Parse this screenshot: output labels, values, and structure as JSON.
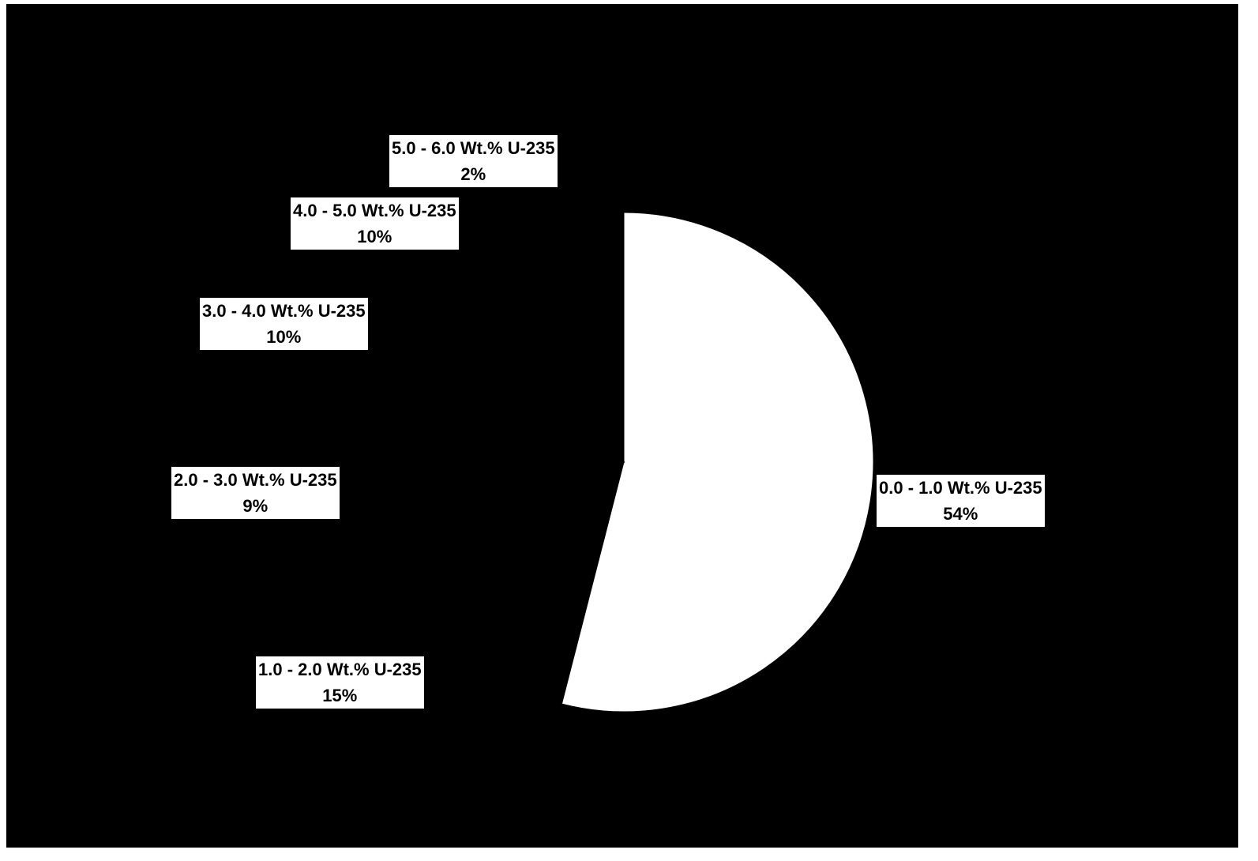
{
  "chart_data": {
    "type": "pie",
    "title": "",
    "slices": [
      {
        "label": "0.0 - 1.0 Wt.% U-235",
        "value": 54,
        "value_label": "54%",
        "color": "#ffffff"
      },
      {
        "label": "1.0 - 2.0 Wt.% U-235",
        "value": 15,
        "value_label": "15%",
        "color": "#000000"
      },
      {
        "label": "2.0 - 3.0 Wt.% U-235",
        "value": 9,
        "value_label": "9%",
        "color": "#000000"
      },
      {
        "label": "3.0 - 4.0 Wt.% U-235",
        "value": 10,
        "value_label": "10%",
        "color": "#000000"
      },
      {
        "label": "4.0 - 5.0 Wt.% U-235",
        "value": 10,
        "value_label": "10%",
        "color": "#000000"
      },
      {
        "label": "5.0 - 6.0 Wt.% U-235",
        "value": 2,
        "value_label": "2%",
        "color": "#000000"
      }
    ],
    "start_angle": "12 o'clock",
    "direction": "clockwise",
    "background": "#000000",
    "legend": "none",
    "data_labels": "boxed, outside"
  }
}
